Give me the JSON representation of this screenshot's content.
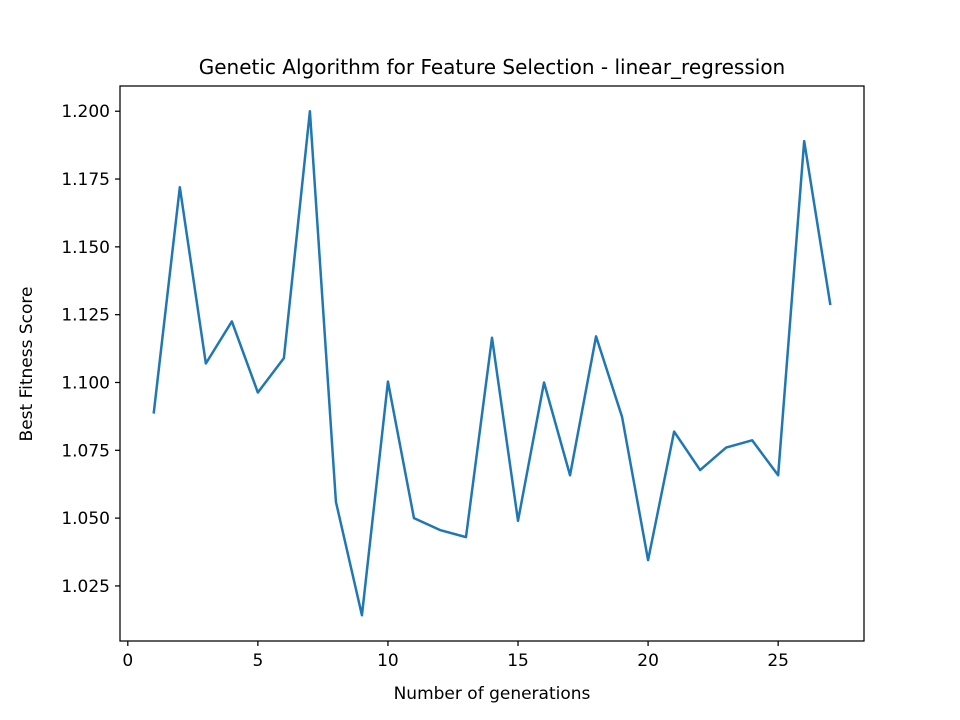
{
  "chart_data": {
    "type": "line",
    "title": "Genetic Algorithm for Feature Selection - linear_regression",
    "xlabel": "Number of generations",
    "ylabel": "Best Fitness Score",
    "x_ticks": [
      0,
      5,
      10,
      15,
      20,
      25
    ],
    "x_tick_labels": [
      "0",
      "5",
      "10",
      "15",
      "20",
      "25"
    ],
    "y_ticks": [
      1.025,
      1.05,
      1.075,
      1.1,
      1.125,
      1.15,
      1.175,
      1.2
    ],
    "y_tick_labels": [
      "1.025",
      "1.050",
      "1.075",
      "1.100",
      "1.125",
      "1.150",
      "1.175",
      "1.200"
    ],
    "xlim": [
      -0.3,
      28.3
    ],
    "ylim": [
      1.0047,
      1.2093
    ],
    "grid": false,
    "line_color": "#1f77b4",
    "series": [
      {
        "x": [
          1,
          2,
          3,
          4,
          5,
          6,
          7,
          8,
          9,
          10,
          11,
          12,
          13,
          14,
          15,
          16,
          17,
          18,
          19,
          20,
          21,
          22,
          23,
          24,
          25,
          26,
          27
        ],
        "values": [
          1.089,
          1.172,
          1.107,
          1.1225,
          1.0963,
          1.109,
          1.2,
          1.056,
          1.0142,
          1.1003,
          1.05,
          1.0456,
          1.043,
          1.1165,
          1.049,
          1.1,
          1.0658,
          1.117,
          1.0873,
          1.0345,
          1.0819,
          1.0677,
          1.076,
          1.0787,
          1.0658,
          1.189,
          1.129
        ]
      }
    ]
  }
}
